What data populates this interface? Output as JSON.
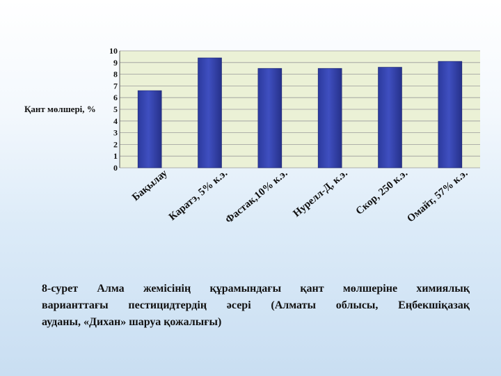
{
  "chart_data": {
    "type": "bar",
    "ylabel": "Қант мөлшері, %",
    "ylim": [
      0,
      10
    ],
    "yticks": [
      "0",
      "1",
      "2",
      "3",
      "4",
      "5",
      "6",
      "7",
      "8",
      "9",
      "10"
    ],
    "categories": [
      "Бақылау",
      "Каратэ, 5% к.э.",
      "Фастак,10% к.э.",
      "Нурелл-Д, к.э.",
      "Скор, 250 к.э.",
      "Омайт, 57% к.э."
    ],
    "values": [
      6.6,
      9.4,
      8.5,
      8.5,
      8.6,
      9.1
    ],
    "grid": true,
    "colors": {
      "bar": "#3f4fc0",
      "plot_bg": "#ebf1d6",
      "grid": "#9a9a9a"
    }
  },
  "caption": {
    "lines": [
      "8-сурет  Алма  жемісінің  құрамындағы  қант  мөлшеріне  химиялық",
      "варианттағы  пестицидтердің  әсері  (Алматы  облысы,  Еңбекшіқазақ",
      "ауданы, «Дихан» шаруа қожалығы)"
    ]
  }
}
